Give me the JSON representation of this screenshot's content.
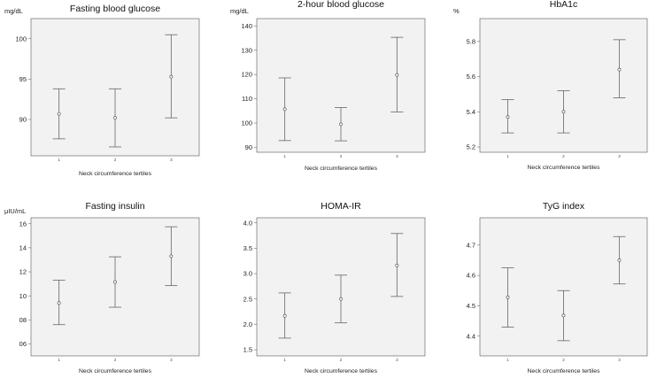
{
  "chart_data": [
    {
      "type": "scatter",
      "title": "Fasting blood glucose",
      "ylabel": "mg/dL",
      "xlabel": "Neck circumference tertiles",
      "categories": [
        "1",
        "2",
        "3"
      ],
      "ylim": [
        85.5,
        102.5
      ],
      "yticks": [
        "90",
        "95",
        "100"
      ],
      "series": [
        {
          "mean": [
            90.7,
            90.2,
            95.3
          ],
          "lower": [
            87.6,
            86.6,
            90.2
          ],
          "upper": [
            93.8,
            93.8,
            100.5
          ]
        }
      ]
    },
    {
      "type": "scatter",
      "title": "2-hour blood glucose",
      "ylabel": "mg/dL",
      "xlabel": "Neck circumference tertiles",
      "categories": [
        "1",
        "2",
        "3"
      ],
      "ylim": [
        88,
        143
      ],
      "yticks": [
        "90",
        "100",
        "110",
        "120",
        "130",
        "140"
      ],
      "series": [
        {
          "mean": [
            105.7,
            99.5,
            119.8
          ],
          "lower": [
            92.8,
            92.7,
            104.6
          ],
          "upper": [
            118.6,
            106.4,
            135.3
          ]
        }
      ]
    },
    {
      "type": "scatter",
      "title": "HbA1c",
      "ylabel": "%",
      "xlabel": "Neck circumference tertiles",
      "categories": [
        "1",
        "2",
        "3"
      ],
      "ylim": [
        5.17,
        5.93
      ],
      "yticks": [
        "5.2",
        "5.4",
        "5.6",
        "5.8"
      ],
      "series": [
        {
          "mean": [
            5.37,
            5.4,
            5.64
          ],
          "lower": [
            5.28,
            5.28,
            5.48
          ],
          "upper": [
            5.47,
            5.52,
            5.81
          ]
        }
      ]
    },
    {
      "type": "scatter",
      "title": "Fasting insulin",
      "ylabel": "μIU/mL",
      "xlabel": "Neck circumference tertiles",
      "categories": [
        "1",
        "2",
        "3"
      ],
      "ylim": [
        5,
        16.5
      ],
      "yticks": [
        "06",
        "08",
        "10",
        "12",
        "14",
        "16"
      ],
      "series": [
        {
          "mean": [
            9.4,
            11.15,
            13.3
          ],
          "lower": [
            7.6,
            9.05,
            10.85
          ],
          "upper": [
            11.3,
            13.25,
            15.75
          ]
        }
      ]
    },
    {
      "type": "scatter",
      "title": "HOMA-IR",
      "ylabel": "",
      "xlabel": "Neck circumference tertiles",
      "categories": [
        "1",
        "2",
        "3"
      ],
      "ylim": [
        1.38,
        4.1
      ],
      "yticks": [
        "1.5",
        "2.0",
        "2.5",
        "3.0",
        "3.5",
        "4.0"
      ],
      "series": [
        {
          "mean": [
            2.17,
            2.5,
            3.16
          ],
          "lower": [
            1.73,
            2.03,
            2.55
          ],
          "upper": [
            2.62,
            2.97,
            3.79
          ]
        }
      ]
    },
    {
      "type": "scatter",
      "title": "TyG index",
      "ylabel": "",
      "xlabel": "Neck circumference tertiles",
      "categories": [
        "1",
        "2",
        "3"
      ],
      "ylim": [
        4.335,
        4.79
      ],
      "yticks": [
        "4.4",
        "4.5",
        "4.6",
        "4.7"
      ],
      "series": [
        {
          "mean": [
            4.528,
            4.468,
            4.65
          ],
          "lower": [
            4.43,
            4.385,
            4.572
          ],
          "upper": [
            4.625,
            4.55,
            4.728
          ]
        }
      ]
    }
  ]
}
